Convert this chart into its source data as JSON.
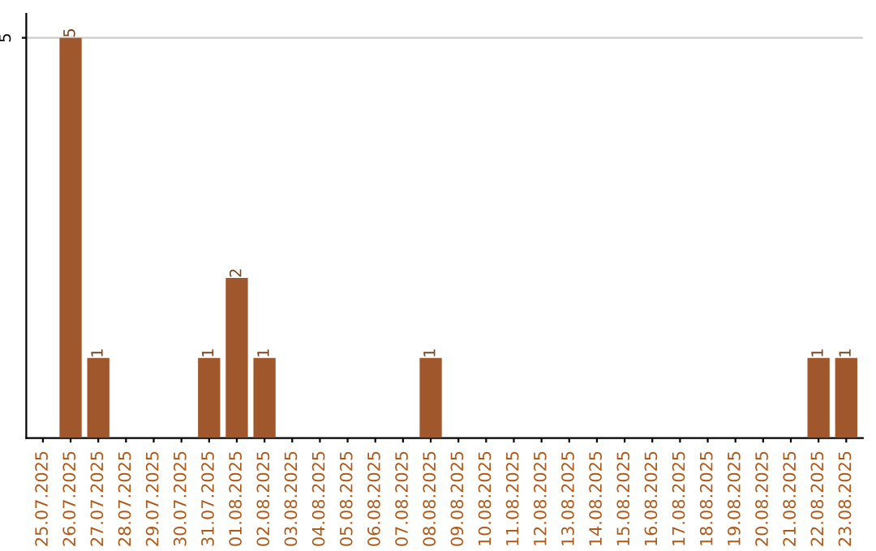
{
  "chart_data": {
    "type": "bar",
    "categories": [
      "25.07.2025",
      "26.07.2025",
      "27.07.2025",
      "28.07.2025",
      "29.07.2025",
      "30.07.2025",
      "31.07.2025",
      "01.08.2025",
      "02.08.2025",
      "03.08.2025",
      "04.08.2025",
      "05.08.2025",
      "06.08.2025",
      "07.08.2025",
      "08.08.2025",
      "09.08.2025",
      "10.08.2025",
      "11.08.2025",
      "12.08.2025",
      "13.08.2025",
      "14.08.2025",
      "15.08.2025",
      "16.08.2025",
      "17.08.2025",
      "18.08.2025",
      "19.08.2025",
      "20.08.2025",
      "21.08.2025",
      "22.08.2025",
      "23.08.2025"
    ],
    "values": [
      0,
      5,
      1,
      0,
      0,
      0,
      1,
      2,
      1,
      0,
      0,
      0,
      0,
      0,
      1,
      0,
      0,
      0,
      0,
      0,
      0,
      0,
      0,
      0,
      0,
      0,
      0,
      0,
      1,
      1
    ],
    "value_labels": [
      null,
      "5",
      "1",
      null,
      null,
      null,
      "1",
      "2",
      "1",
      null,
      null,
      null,
      null,
      null,
      "1",
      null,
      null,
      null,
      null,
      null,
      null,
      null,
      null,
      null,
      null,
      null,
      null,
      null,
      "1",
      "1"
    ],
    "color": "#a0572b",
    "ylim": [
      0,
      5.3
    ],
    "yticks": [
      5
    ],
    "grid": "y",
    "legend": false
  }
}
